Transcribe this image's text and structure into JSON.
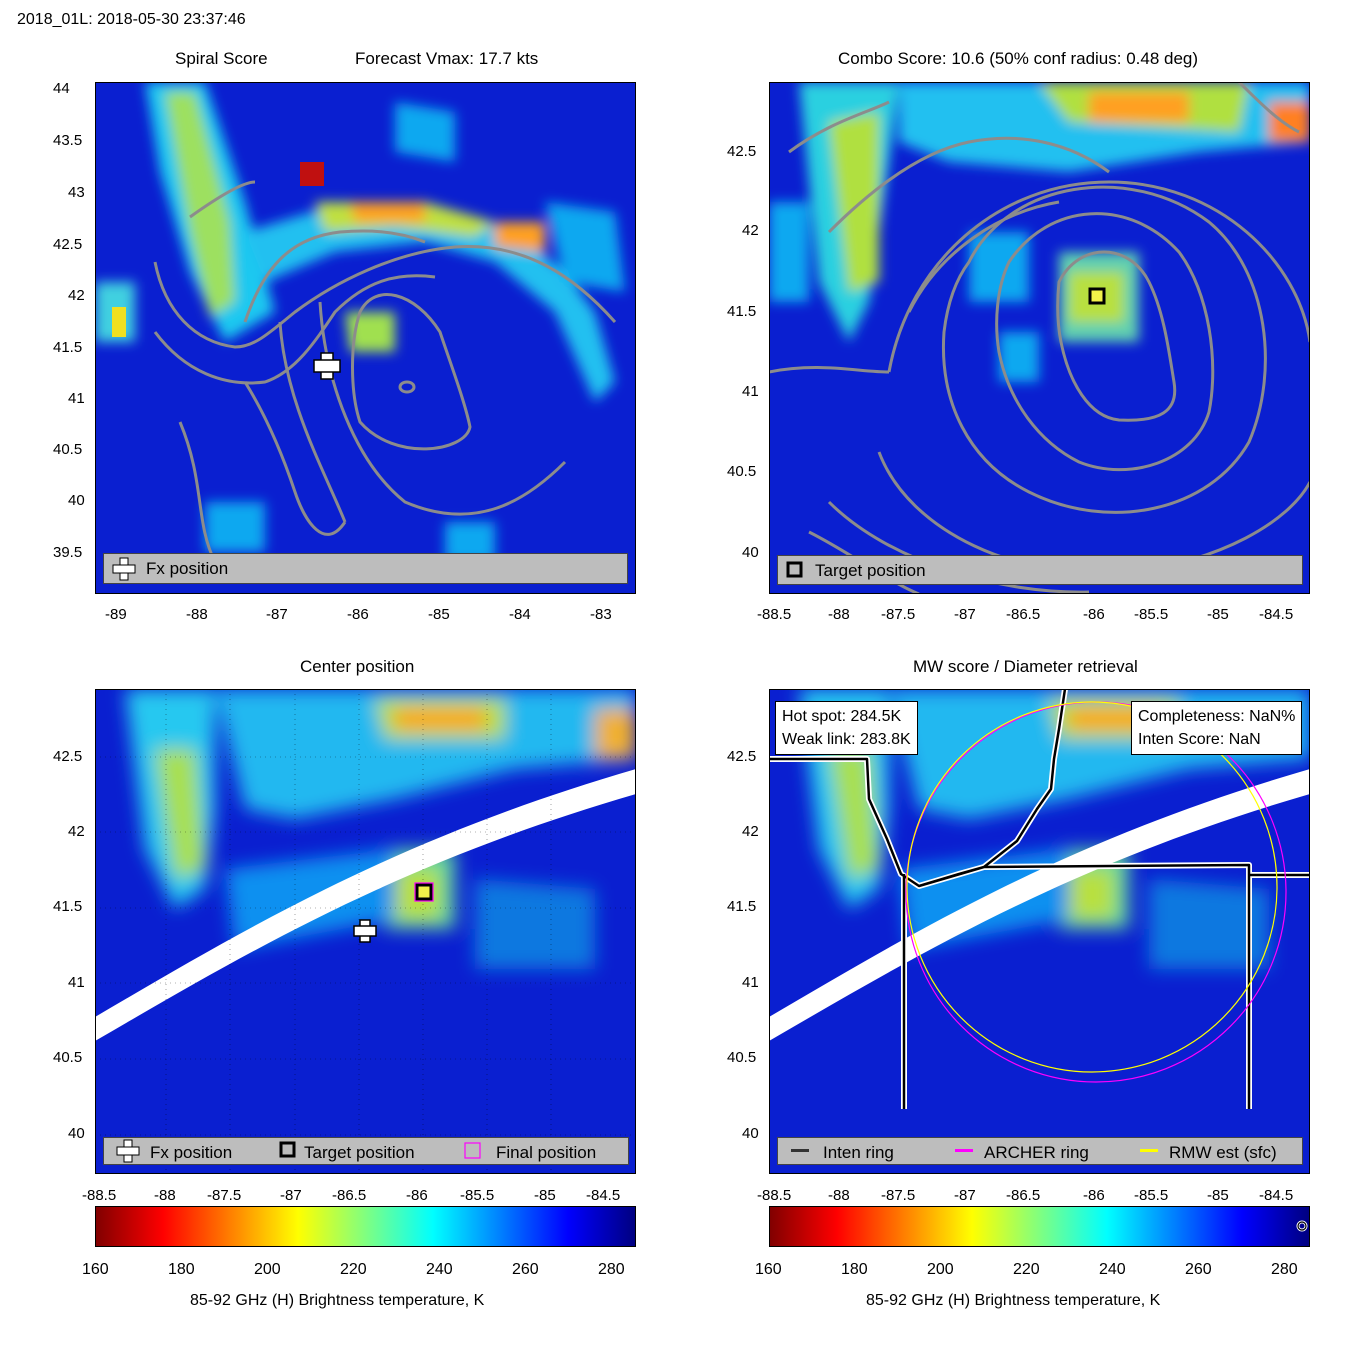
{
  "figure": {
    "suptitle": "2018_01L: 2018-05-30 23:37:46"
  },
  "panels": {
    "spiral": {
      "title_left": "Spiral Score",
      "title_right": "Forecast Vmax: 17.7 kts",
      "legend": [
        "Fx position"
      ]
    },
    "combo": {
      "title": "Combo Score: 10.6  (50% conf radius: 0.48 deg)",
      "legend": [
        "Target position"
      ]
    },
    "center": {
      "title": "Center position",
      "legend": [
        "Fx position",
        "Target position",
        "Final position"
      ]
    },
    "mw": {
      "title": "MW score / Diameter retrieval",
      "info_left": [
        "Hot spot: 284.5K",
        "Weak link: 283.8K"
      ],
      "info_right": [
        "Completeness: NaN%",
        "Inten Score: NaN"
      ],
      "legend": [
        "Inten ring",
        "ARCHER ring",
        "RMW est (sfc)"
      ]
    }
  },
  "colorbar": {
    "label": "85-92 GHz (H) Brightness temperature, K",
    "ticks": [
      "160",
      "180",
      "200",
      "220",
      "240",
      "260",
      "280"
    ]
  },
  "colors": {
    "ring": "#000000",
    "archer": "#ff00ff",
    "rmw": "#ffff00",
    "contour": "#8c8c8c",
    "field_base": "#0a1fd0"
  },
  "chart_data": [
    {
      "type": "heatmap",
      "name": "Spiral Score",
      "xlim": [
        -89.3,
        -82.6
      ],
      "ylim": [
        39.1,
        44.1
      ],
      "xticks": [
        "-89",
        "-88",
        "-87",
        "-86",
        "-85",
        "-84",
        "-83"
      ],
      "yticks": [
        "39.5",
        "40",
        "40.5",
        "41",
        "41.5",
        "42",
        "42.5",
        "43",
        "43.5",
        "44"
      ],
      "fx_position": [
        -86.4,
        41.35
      ]
    },
    {
      "type": "heatmap",
      "name": "Combo Score",
      "xlim": [
        -88.5,
        -84.3
      ],
      "ylim": [
        39.75,
        42.95
      ],
      "xticks": [
        "-88.5",
        "-88",
        "-87.5",
        "-87",
        "-86.5",
        "-86",
        "-85.5",
        "-85",
        "-84.5"
      ],
      "yticks": [
        "40",
        "40.5",
        "41",
        "41.5",
        "42",
        "42.5"
      ],
      "target_position": [
        -86.0,
        41.6
      ]
    },
    {
      "type": "heatmap",
      "name": "Center position",
      "xlim": [
        -88.5,
        -84.3
      ],
      "ylim": [
        39.75,
        42.95
      ],
      "xticks": [
        "-88.5",
        "-88",
        "-87.5",
        "-87",
        "-86.5",
        "-86",
        "-85.5",
        "-85",
        "-84.5"
      ],
      "yticks": [
        "40",
        "40.5",
        "41",
        "41.5",
        "42",
        "42.5"
      ],
      "fx_position": [
        -86.45,
        41.35
      ],
      "target_position": [
        -86.0,
        41.6
      ],
      "final_position": [
        -86.0,
        41.6
      ]
    },
    {
      "type": "heatmap",
      "name": "MW score / Diameter retrieval",
      "xlim": [
        -88.5,
        -84.3
      ],
      "ylim": [
        39.75,
        42.95
      ],
      "xticks": [
        "-88.5",
        "-88",
        "-87.5",
        "-87",
        "-86.5",
        "-86",
        "-85.5",
        "-85",
        "-84.5"
      ],
      "yticks": [
        "40",
        "40.5",
        "41",
        "41.5",
        "42",
        "42.5"
      ],
      "archer_ring_center": [
        -86.0,
        41.6
      ],
      "archer_ring_radius_deg": 1.15
    }
  ]
}
